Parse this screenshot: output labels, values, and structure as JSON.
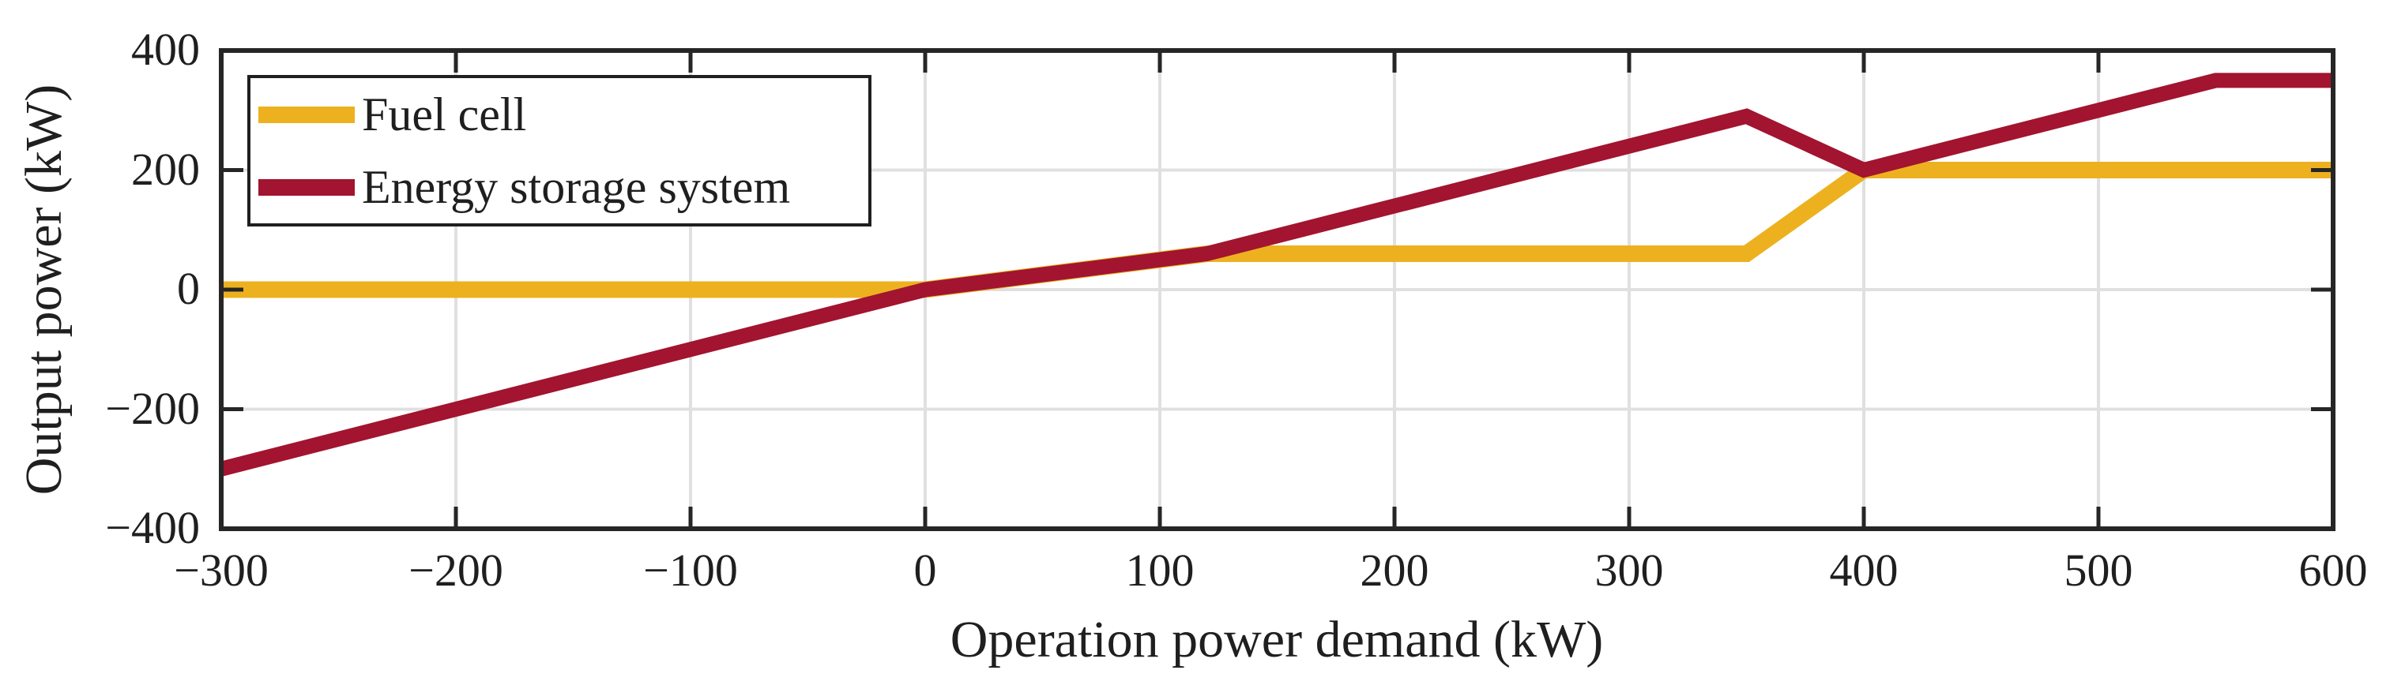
{
  "chart_data": {
    "type": "line",
    "title": "",
    "xlabel": "Operation power demand (kW)",
    "ylabel": "Output power (kW)",
    "xlim": [
      -300,
      600
    ],
    "ylim": [
      -400,
      400
    ],
    "xticks": [
      -300,
      -200,
      -100,
      0,
      100,
      200,
      300,
      400,
      500,
      600
    ],
    "yticks": [
      -400,
      -200,
      0,
      200,
      400
    ],
    "grid": true,
    "legend_position": "top-left",
    "series": [
      {
        "name": "Fuel cell",
        "color": "#EDB120",
        "points": [
          [
            -300,
            0
          ],
          [
            0,
            0
          ],
          [
            120,
            60
          ],
          [
            350,
            60
          ],
          [
            400,
            200
          ],
          [
            600,
            200
          ]
        ]
      },
      {
        "name": "Energy storage system",
        "color": "#A2142F",
        "points": [
          [
            -300,
            -300
          ],
          [
            0,
            0
          ],
          [
            120,
            60
          ],
          [
            350,
            290
          ],
          [
            400,
            200
          ],
          [
            550,
            350
          ],
          [
            600,
            350
          ]
        ]
      }
    ]
  },
  "legend": {
    "items": [
      {
        "label": "Fuel cell",
        "color": "#EDB120"
      },
      {
        "label": "Energy storage system",
        "color": "#A2142F"
      }
    ]
  },
  "colors": {
    "background": "#FFFFFF",
    "grid": "#E0E0E0",
    "axis": "#262626",
    "text": "#1F1F1F"
  }
}
